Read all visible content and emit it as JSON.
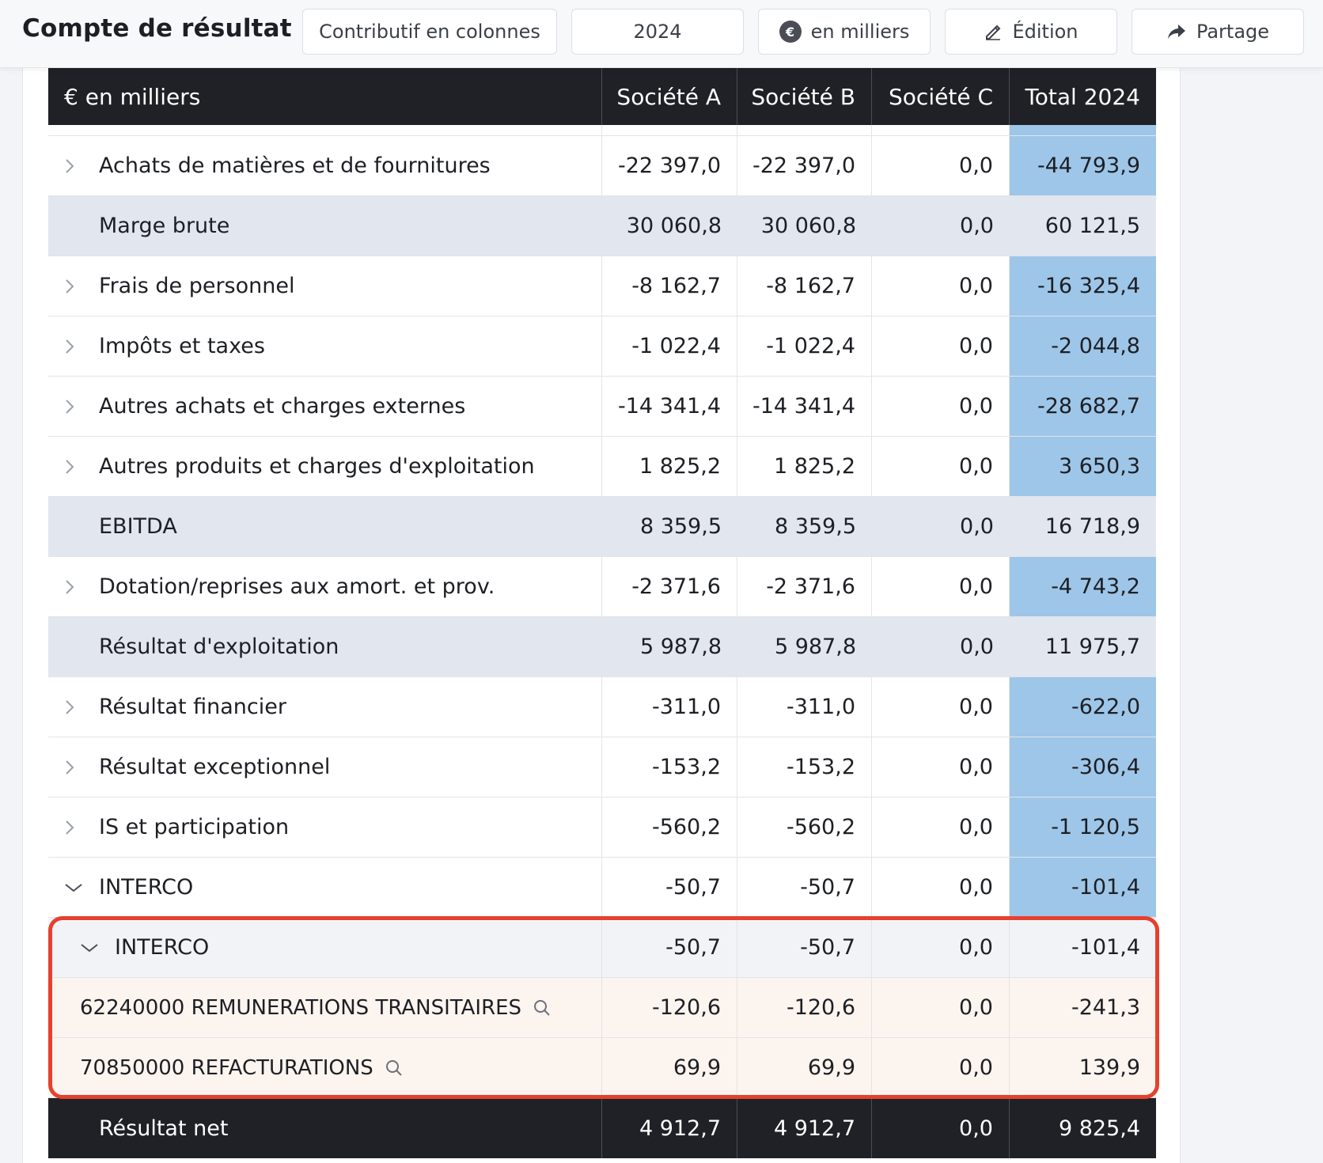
{
  "header": {
    "title": "Compte de résultat",
    "buttons": {
      "view": "Contributif en colonnes",
      "year": "2024",
      "unit": "en milliers",
      "edit": "Édition",
      "share": "Partage"
    }
  },
  "table": {
    "columns": {
      "label": "€ en milliers",
      "a": "Société A",
      "b": "Société B",
      "c": "Société C",
      "total": "Total 2024"
    },
    "rows": [
      {
        "label": "Achats de matières et de fournitures",
        "a": "-22 397,0",
        "b": "-22 397,0",
        "c": "0,0",
        "total": "-44 793,9"
      },
      {
        "label": "Marge brute",
        "a": "30 060,8",
        "b": "30 060,8",
        "c": "0,0",
        "total": "60 121,5"
      },
      {
        "label": "Frais de personnel",
        "a": "-8 162,7",
        "b": "-8 162,7",
        "c": "0,0",
        "total": "-16 325,4"
      },
      {
        "label": "Impôts et taxes",
        "a": "-1 022,4",
        "b": "-1 022,4",
        "c": "0,0",
        "total": "-2 044,8"
      },
      {
        "label": "Autres achats et charges externes",
        "a": "-14 341,4",
        "b": "-14 341,4",
        "c": "0,0",
        "total": "-28 682,7"
      },
      {
        "label": "Autres produits et charges d'exploitation",
        "a": "1 825,2",
        "b": "1 825,2",
        "c": "0,0",
        "total": "3 650,3"
      },
      {
        "label": "EBITDA",
        "a": "8 359,5",
        "b": "8 359,5",
        "c": "0,0",
        "total": "16 718,9"
      },
      {
        "label": "Dotation/reprises aux amort. et prov.",
        "a": "-2 371,6",
        "b": "-2 371,6",
        "c": "0,0",
        "total": "-4 743,2"
      },
      {
        "label": "Résultat d'exploitation",
        "a": "5 987,8",
        "b": "5 987,8",
        "c": "0,0",
        "total": "11 975,7"
      },
      {
        "label": "Résultat financier",
        "a": "-311,0",
        "b": "-311,0",
        "c": "0,0",
        "total": "-622,0"
      },
      {
        "label": "Résultat exceptionnel",
        "a": "-153,2",
        "b": "-153,2",
        "c": "0,0",
        "total": "-306,4"
      },
      {
        "label": "IS et participation",
        "a": "-560,2",
        "b": "-560,2",
        "c": "0,0",
        "total": "-1 120,5"
      },
      {
        "label": "INTERCO",
        "a": "-50,7",
        "b": "-50,7",
        "c": "0,0",
        "total": "-101,4"
      },
      {
        "label": "INTERCO",
        "a": "-50,7",
        "b": "-50,7",
        "c": "0,0",
        "total": "-101,4"
      },
      {
        "label": "62240000 REMUNERATIONS TRANSITAIRES",
        "a": "-120,6",
        "b": "-120,6",
        "c": "0,0",
        "total": "-241,3"
      },
      {
        "label": "70850000 REFACTURATIONS",
        "a": "69,9",
        "b": "69,9",
        "c": "0,0",
        "total": "139,9"
      },
      {
        "label": "Résultat net",
        "a": "4 912,7",
        "b": "4 912,7",
        "c": "0,0",
        "total": "9 825,4"
      }
    ]
  },
  "colors": {
    "header_bg": "#1f2126",
    "total_col_highlight": "#9ec6e8",
    "subtotal_bg": "#e2e6ee",
    "account_bg": "#fcf4ef",
    "highlight_border": "#e5412e"
  }
}
